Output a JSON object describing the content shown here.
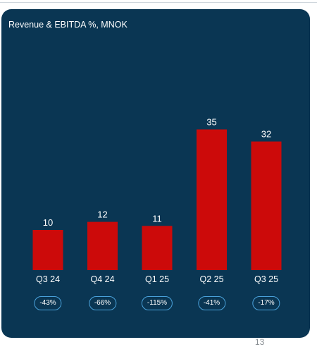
{
  "colors": {
    "panel_bg": "#0a3653",
    "bar": "#cc0a0a",
    "text": "#ffffff",
    "pill_border": "#4ba3dc"
  },
  "chart_data": {
    "type": "bar",
    "title": "Revenue & EBITDA %, MNOK",
    "xlabel": "",
    "ylabel": "",
    "categories": [
      "Q3 24",
      "Q4 24",
      "Q1 25",
      "Q2 25",
      "Q3 25"
    ],
    "values": [
      10,
      12,
      11,
      35,
      32
    ],
    "value_labels": [
      "10",
      "12",
      "11",
      "35",
      "32"
    ],
    "ebitda_pct": [
      "-43%",
      "-66%",
      "-115%",
      "-41%",
      "-17%"
    ],
    "ylim": [
      0,
      40
    ],
    "grid": false,
    "legend": "none"
  },
  "footer": {
    "page_number": "13"
  }
}
